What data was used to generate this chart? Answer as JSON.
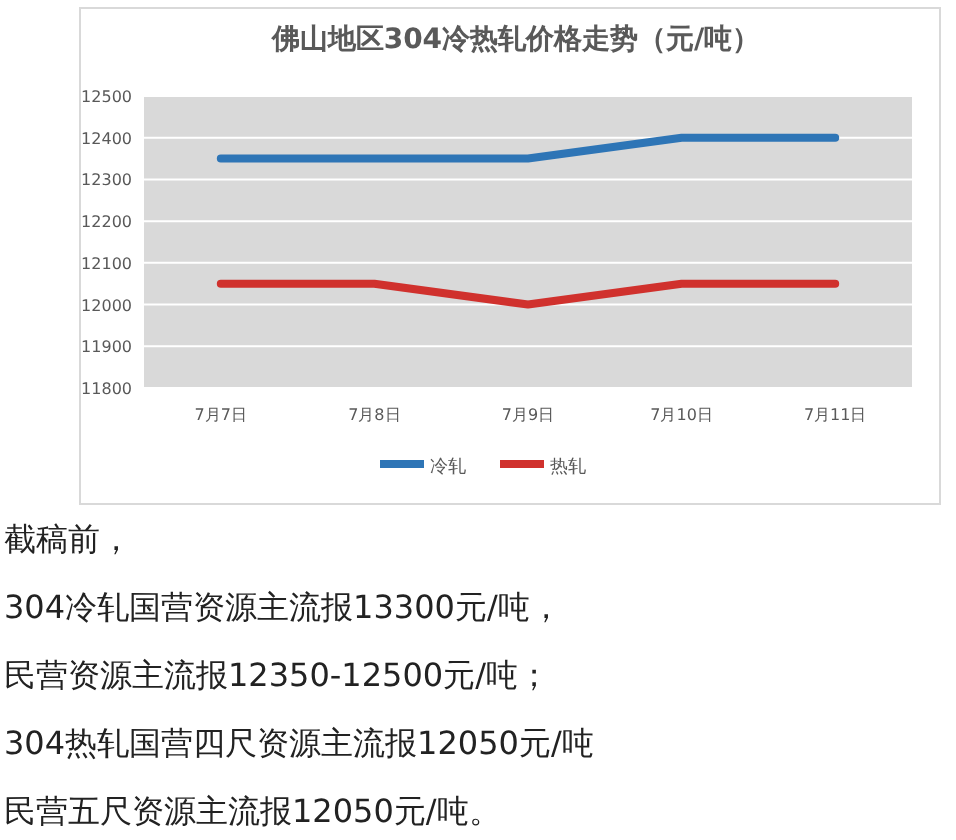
{
  "chart_data": {
    "type": "line",
    "title": "佛山地区304冷热轧价格走势（元/吨）",
    "categories": [
      "7月7日",
      "7月8日",
      "7月9日",
      "7月10日",
      "7月11日"
    ],
    "series": [
      {
        "name": "冷轧",
        "color": "#2e75b6",
        "values": [
          12350,
          12350,
          12350,
          12400,
          12400
        ]
      },
      {
        "name": "热轧",
        "color": "#d0312d",
        "values": [
          12050,
          12050,
          12000,
          12050,
          12050
        ]
      }
    ],
    "ylim": [
      11800,
      12500
    ],
    "yticks": [
      11800,
      11900,
      12000,
      12100,
      12200,
      12300,
      12400,
      12500
    ],
    "grid": "y",
    "legend": "bottom",
    "marker": "none",
    "line_style": "solid",
    "annotations": [
      "截稿前，",
      "304冷轧国营资源主流报13300元/吨，",
      "民营资源主流报12350-12500元/吨；",
      "304热轧国营四尺资源主流报12050元/吨",
      "民营五尺资源主流报12050元/吨。"
    ]
  }
}
